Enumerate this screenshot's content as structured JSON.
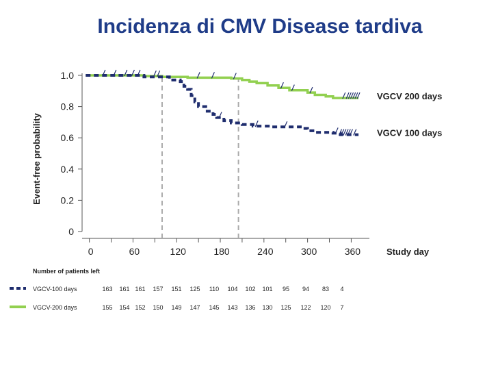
{
  "title": "Incidenza di  CMV Disease tardiva",
  "chart_data": {
    "type": "line",
    "subtype": "kaplan-meier step",
    "ylabel": "Event-free probability",
    "xlabel": "Study day",
    "xlim": [
      -10,
      385
    ],
    "ylim": [
      0,
      1.0
    ],
    "x_ticks": [
      "0",
      "60",
      "120",
      "180",
      "240",
      "300",
      "360"
    ],
    "y_ticks": [
      "0",
      "0.2",
      "0.4",
      "0.6",
      "0.8",
      "1.0"
    ],
    "reference_lines_x": [
      100,
      205
    ],
    "series": [
      {
        "name": "VGCV 200 days",
        "color": "#92d050",
        "style": "solid",
        "points": [
          [
            -5,
            1.0
          ],
          [
            75,
            1.0
          ],
          [
            75,
            0.995
          ],
          [
            100,
            0.995
          ],
          [
            100,
            0.99
          ],
          [
            135,
            0.99
          ],
          [
            135,
            0.985
          ],
          [
            195,
            0.985
          ],
          [
            195,
            0.98
          ],
          [
            210,
            0.98
          ],
          [
            210,
            0.97
          ],
          [
            220,
            0.97
          ],
          [
            220,
            0.96
          ],
          [
            230,
            0.96
          ],
          [
            230,
            0.95
          ],
          [
            245,
            0.95
          ],
          [
            245,
            0.935
          ],
          [
            260,
            0.935
          ],
          [
            260,
            0.92
          ],
          [
            275,
            0.92
          ],
          [
            275,
            0.905
          ],
          [
            300,
            0.905
          ],
          [
            300,
            0.89
          ],
          [
            310,
            0.89
          ],
          [
            310,
            0.875
          ],
          [
            325,
            0.875
          ],
          [
            325,
            0.865
          ],
          [
            335,
            0.865
          ],
          [
            335,
            0.855
          ],
          [
            370,
            0.855
          ]
        ],
        "censor_x": [
          20,
          35,
          50,
          60,
          68,
          90,
          95,
          150,
          170,
          200,
          265,
          280,
          305,
          350,
          355,
          358,
          361,
          364,
          367,
          370
        ]
      },
      {
        "name": "VGCV 100 days",
        "color": "#1f2d6e",
        "style": "dashed",
        "points": [
          [
            -5,
            1.0
          ],
          [
            75,
            1.0
          ],
          [
            75,
            0.99
          ],
          [
            110,
            0.99
          ],
          [
            110,
            0.97
          ],
          [
            125,
            0.97
          ],
          [
            125,
            0.96
          ],
          [
            130,
            0.96
          ],
          [
            130,
            0.93
          ],
          [
            135,
            0.93
          ],
          [
            135,
            0.91
          ],
          [
            140,
            0.91
          ],
          [
            140,
            0.87
          ],
          [
            145,
            0.87
          ],
          [
            145,
            0.83
          ],
          [
            150,
            0.83
          ],
          [
            150,
            0.8
          ],
          [
            160,
            0.8
          ],
          [
            160,
            0.77
          ],
          [
            170,
            0.77
          ],
          [
            170,
            0.75
          ],
          [
            175,
            0.75
          ],
          [
            175,
            0.73
          ],
          [
            185,
            0.73
          ],
          [
            185,
            0.71
          ],
          [
            195,
            0.71
          ],
          [
            195,
            0.695
          ],
          [
            210,
            0.695
          ],
          [
            210,
            0.685
          ],
          [
            225,
            0.685
          ],
          [
            225,
            0.675
          ],
          [
            250,
            0.675
          ],
          [
            250,
            0.67
          ],
          [
            290,
            0.67
          ],
          [
            290,
            0.66
          ],
          [
            300,
            0.66
          ],
          [
            300,
            0.645
          ],
          [
            310,
            0.645
          ],
          [
            310,
            0.635
          ],
          [
            335,
            0.635
          ],
          [
            335,
            0.63
          ],
          [
            345,
            0.63
          ],
          [
            345,
            0.62
          ],
          [
            370,
            0.62
          ]
        ],
        "censor_x": [
          180,
          230,
          270,
          340,
          345,
          348,
          351,
          354,
          357,
          360,
          365
        ]
      }
    ]
  },
  "risk_table": {
    "heading": "Number of patients  left",
    "rows": [
      {
        "label": "VGCV-100 days",
        "color": "#1f2d6e",
        "style": "dashed",
        "values": [
          "163",
          "161",
          "161",
          "157",
          "151",
          "125",
          "110",
          "104",
          "102",
          "101",
          "95",
          "94",
          "83",
          "4"
        ]
      },
      {
        "label": "VGCV-200 days",
        "color": "#92d050",
        "style": "solid",
        "values": [
          "155",
          "154",
          "152",
          "150",
          "149",
          "147",
          "145",
          "143",
          "136",
          "130",
          "125",
          "122",
          "120",
          "7"
        ]
      }
    ]
  }
}
